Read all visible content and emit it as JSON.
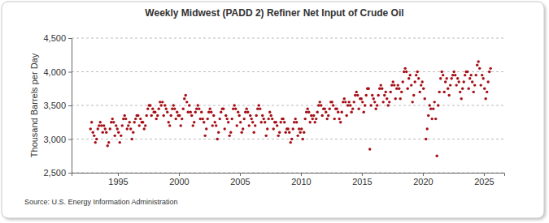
{
  "chart_data": {
    "type": "scatter",
    "title": "Weekly Midwest (PADD 2) Refiner Net Input of Crude Oil",
    "ylabel": "Thousand Barrels per Day",
    "annotations": [
      "Source: U.S. Energy Information Administration"
    ],
    "color": "#a50f15",
    "marker": "circle",
    "grid": true,
    "xlim": [
      1991.2,
      2026.67
    ],
    "xticks": [
      1995,
      2000,
      2005,
      2010,
      2015,
      2020,
      2025
    ],
    "ylim": [
      2500,
      4500
    ],
    "yticks": [
      {
        "value": 2500,
        "label": "2,500"
      },
      {
        "value": 3000,
        "label": "3,000"
      },
      {
        "value": 3500,
        "label": "3,500"
      },
      {
        "value": 4000,
        "label": "4,000"
      },
      {
        "value": 4500,
        "label": "4,500"
      }
    ],
    "x": [
      1992.75,
      1992.85,
      1992.95,
      1993.05,
      1993.15,
      1993.25,
      1993.35,
      1993.45,
      1993.55,
      1993.65,
      1993.75,
      1993.85,
      1993.95,
      1994.05,
      1994.15,
      1994.25,
      1994.35,
      1994.45,
      1994.55,
      1994.65,
      1994.75,
      1994.85,
      1994.95,
      1995.05,
      1995.15,
      1995.25,
      1995.35,
      1995.45,
      1995.55,
      1995.65,
      1995.75,
      1995.85,
      1995.95,
      1996.05,
      1996.15,
      1996.25,
      1996.35,
      1996.45,
      1996.55,
      1996.65,
      1996.75,
      1996.85,
      1996.95,
      1997.05,
      1997.15,
      1997.25,
      1997.35,
      1997.45,
      1997.55,
      1997.65,
      1997.75,
      1997.85,
      1997.95,
      1998.05,
      1998.15,
      1998.25,
      1998.35,
      1998.45,
      1998.55,
      1998.65,
      1998.75,
      1998.85,
      1998.95,
      1999.05,
      1999.15,
      1999.25,
      1999.35,
      1999.45,
      1999.55,
      1999.65,
      1999.75,
      1999.85,
      1999.95,
      2000.05,
      2000.15,
      2000.25,
      2000.35,
      2000.45,
      2000.55,
      2000.65,
      2000.75,
      2000.85,
      2000.95,
      2001.05,
      2001.15,
      2001.25,
      2001.35,
      2001.45,
      2001.55,
      2001.65,
      2001.75,
      2001.85,
      2001.95,
      2002.05,
      2002.15,
      2002.25,
      2002.35,
      2002.45,
      2002.55,
      2002.65,
      2002.75,
      2002.85,
      2002.95,
      2003.05,
      2003.15,
      2003.25,
      2003.35,
      2003.45,
      2003.55,
      2003.65,
      2003.75,
      2003.85,
      2003.95,
      2004.05,
      2004.15,
      2004.25,
      2004.35,
      2004.45,
      2004.55,
      2004.65,
      2004.75,
      2004.85,
      2004.95,
      2005.05,
      2005.15,
      2005.25,
      2005.35,
      2005.45,
      2005.55,
      2005.65,
      2005.75,
      2005.85,
      2005.95,
      2006.05,
      2006.15,
      2006.25,
      2006.35,
      2006.45,
      2006.55,
      2006.65,
      2006.75,
      2006.85,
      2006.95,
      2007.05,
      2007.15,
      2007.25,
      2007.35,
      2007.45,
      2007.55,
      2007.65,
      2007.75,
      2007.85,
      2007.95,
      2008.05,
      2008.15,
      2008.25,
      2008.35,
      2008.45,
      2008.55,
      2008.65,
      2008.75,
      2008.85,
      2008.95,
      2009.05,
      2009.15,
      2009.25,
      2009.35,
      2009.45,
      2009.55,
      2009.65,
      2009.75,
      2009.85,
      2009.95,
      2010.05,
      2010.15,
      2010.25,
      2010.35,
      2010.45,
      2010.55,
      2010.65,
      2010.75,
      2010.85,
      2010.95,
      2011.05,
      2011.15,
      2011.25,
      2011.35,
      2011.45,
      2011.55,
      2011.65,
      2011.75,
      2011.85,
      2011.95,
      2012.05,
      2012.15,
      2012.25,
      2012.35,
      2012.45,
      2012.55,
      2012.65,
      2012.75,
      2012.85,
      2012.95,
      2013.05,
      2013.15,
      2013.25,
      2013.35,
      2013.45,
      2013.55,
      2013.65,
      2013.75,
      2013.85,
      2013.95,
      2014.05,
      2014.15,
      2014.25,
      2014.35,
      2014.45,
      2014.55,
      2014.65,
      2014.75,
      2014.85,
      2014.95,
      2015.05,
      2015.15,
      2015.25,
      2015.35,
      2015.45,
      2015.55,
      2015.65,
      2015.75,
      2015.85,
      2015.95,
      2016.05,
      2016.15,
      2016.25,
      2016.35,
      2016.45,
      2016.55,
      2016.65,
      2016.75,
      2016.85,
      2016.95,
      2017.05,
      2017.15,
      2017.25,
      2017.35,
      2017.45,
      2017.55,
      2017.65,
      2017.75,
      2017.85,
      2017.95,
      2018.05,
      2018.15,
      2018.25,
      2018.35,
      2018.45,
      2018.55,
      2018.65,
      2018.75,
      2018.85,
      2018.95,
      2019.05,
      2019.15,
      2019.25,
      2019.35,
      2019.45,
      2019.55,
      2019.65,
      2019.75,
      2019.85,
      2019.95,
      2020.05,
      2020.15,
      2020.25,
      2020.35,
      2020.45,
      2020.55,
      2020.65,
      2020.75,
      2020.85,
      2020.95,
      2021.05,
      2021.15,
      2021.25,
      2021.35,
      2021.45,
      2021.55,
      2021.65,
      2021.75,
      2021.85,
      2021.95,
      2022.05,
      2022.15,
      2022.25,
      2022.35,
      2022.45,
      2022.55,
      2022.65,
      2022.75,
      2022.85,
      2022.95,
      2023.05,
      2023.15,
      2023.25,
      2023.35,
      2023.45,
      2023.55,
      2023.65,
      2023.75,
      2023.85,
      2023.95,
      2024.05,
      2024.15,
      2024.25,
      2024.35,
      2024.45,
      2024.55,
      2024.65,
      2024.75,
      2024.85,
      2024.95,
      2025.05,
      2025.15,
      2025.25,
      2025.35,
      2025.45,
      2025.55
    ],
    "values": [
      3150,
      3250,
      3100,
      3050,
      2950,
      3000,
      3150,
      3200,
      3250,
      3200,
      3100,
      3200,
      3150,
      3100,
      2900,
      2950,
      3150,
      3250,
      3300,
      3250,
      3050,
      3200,
      3150,
      3100,
      2950,
      3050,
      3200,
      3300,
      3350,
      3300,
      3150,
      3200,
      3250,
      3150,
      3000,
      3100,
      3250,
      3300,
      3350,
      3350,
      3200,
      3300,
      3250,
      3250,
      3150,
      3200,
      3350,
      3450,
      3500,
      3500,
      3350,
      3450,
      3400,
      3400,
      3300,
      3350,
      3450,
      3550,
      3500,
      3550,
      3350,
      3500,
      3450,
      3400,
      3250,
      3200,
      3350,
      3450,
      3500,
      3450,
      3300,
      3400,
      3350,
      3350,
      3200,
      3300,
      3450,
      3600,
      3650,
      3550,
      3400,
      3500,
      3400,
      3350,
      3200,
      3250,
      3400,
      3450,
      3500,
      3450,
      3300,
      3400,
      3300,
      3250,
      3050,
      3150,
      3300,
      3400,
      3450,
      3400,
      3200,
      3350,
      3250,
      3200,
      3000,
      3100,
      3300,
      3400,
      3450,
      3450,
      3150,
      3350,
      3300,
      3250,
      3050,
      3100,
      3300,
      3450,
      3500,
      3450,
      3200,
      3400,
      3350,
      3250,
      3100,
      3150,
      3300,
      3400,
      3450,
      3400,
      3200,
      3350,
      3300,
      3250,
      3100,
      3200,
      3350,
      3450,
      3500,
      3450,
      3250,
      3350,
      3300,
      3250,
      3050,
      3150,
      3300,
      3400,
      3350,
      3300,
      3150,
      3250,
      3250,
      3200,
      3050,
      3100,
      3250,
      3300,
      3300,
      3250,
      3100,
      3150,
      3150,
      3100,
      2950,
      3000,
      3150,
      3250,
      3300,
      3250,
      3050,
      3150,
      3100,
      3150,
      3000,
      3100,
      3300,
      3400,
      3450,
      3400,
      3250,
      3350,
      3300,
      3350,
      3250,
      3300,
      3400,
      3500,
      3550,
      3500,
      3350,
      3450,
      3450,
      3400,
      3300,
      3350,
      3450,
      3550,
      3550,
      3500,
      3300,
      3450,
      3450,
      3400,
      3300,
      3250,
      3400,
      3550,
      3600,
      3550,
      3350,
      3500,
      3550,
      3500,
      3400,
      3450,
      3550,
      3650,
      3700,
      3650,
      3450,
      3600,
      3600,
      3550,
      3400,
      3500,
      3650,
      3750,
      3750,
      2850,
      3500,
      3650,
      3600,
      3550,
      3450,
      3500,
      3650,
      3750,
      3800,
      3750,
      3550,
      3650,
      3700,
      3600,
      3500,
      3550,
      3700,
      3800,
      3850,
      3800,
      3600,
      3750,
      3800,
      3750,
      3600,
      3700,
      3850,
      4000,
      4050,
      4000,
      3750,
      3900,
      3950,
      3800,
      3550,
      3650,
      3850,
      3950,
      4000,
      3900,
      3700,
      3800,
      3850,
      3750,
      3600,
      3000,
      3150,
      3350,
      3500,
      3450,
      3300,
      3450,
      3550,
      3300,
      2750,
      3500,
      3700,
      3900,
      4000,
      3950,
      3700,
      3850,
      3900,
      3750,
      3650,
      3800,
      3900,
      3950,
      4000,
      3950,
      3800,
      3900,
      3850,
      3700,
      3600,
      3750,
      3850,
      3950,
      4000,
      4000,
      3750,
      3900,
      3950,
      3850,
      3700,
      3800,
      3950,
      4100,
      4150,
      4050,
      3800,
      3950,
      3900,
      3750,
      3600,
      3700,
      3850,
      4000,
      4050
    ]
  }
}
